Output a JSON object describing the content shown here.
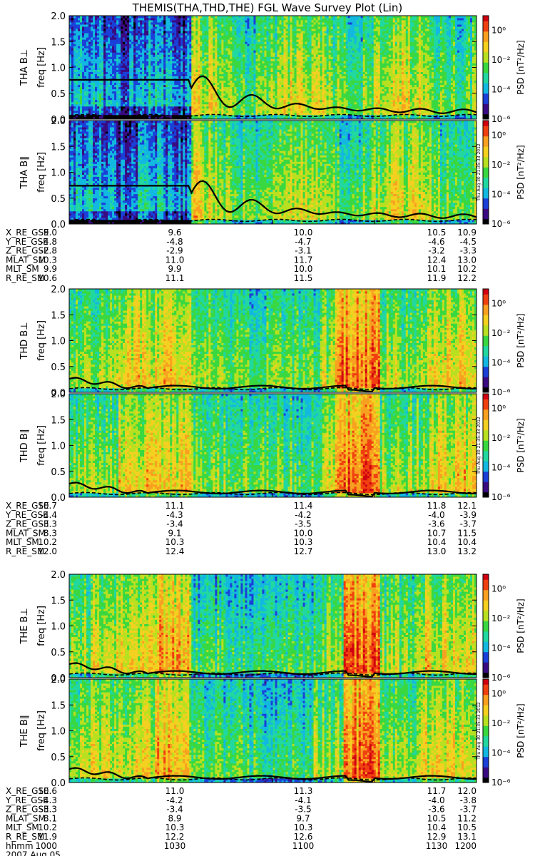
{
  "title": "THEMIS(THA,THD,THE) FGL Wave Survey Plot (Lin)",
  "colors": {
    "colormap": [
      "#000000",
      "#3a0a80",
      "#1a40d8",
      "#12b8e0",
      "#20d8a0",
      "#3ad840",
      "#b8e020",
      "#f4d020",
      "#f8a020",
      "#f04010",
      "#d00010"
    ],
    "trace": "#000000"
  },
  "stamp": "Thu Aug 30 21:35:33 2012",
  "colorbar": {
    "label_prefix": "PSD",
    "label_units": "[nT²/Hz]",
    "ticks": [
      "10⁰",
      "10⁻²",
      "10⁻⁴",
      "10⁻⁶"
    ],
    "tick_exponents": [
      0,
      -2,
      -4,
      -6
    ]
  },
  "chart_data": [
    {
      "type": "heatmap",
      "probe": "THA",
      "panels": [
        {
          "ylabel": "THA B⊥",
          "ylabel2": "freq [Hz]"
        },
        {
          "ylabel": "THA B∥",
          "ylabel2": "freq [Hz]"
        }
      ],
      "ylim": [
        0,
        2.0
      ],
      "yticks": [
        "0.0",
        "0.5",
        "1.0",
        "1.5",
        "2.0"
      ],
      "ytick_values": [
        0,
        0.5,
        1.0,
        1.5,
        2.0
      ],
      "zscale": "log",
      "zlim": [
        1e-06,
        10.0
      ],
      "rows": [
        {
          "label": "X_RE_GSE",
          "values": [
            "9.0",
            "9.6",
            "10.0",
            "10.5",
            "10.9"
          ]
        },
        {
          "label": "Y_RE_GSE",
          "values": [
            "-4.8",
            "-4.8",
            "-4.7",
            "-4.6",
            "-4.5"
          ]
        },
        {
          "label": "Z_RE_GSE",
          "values": [
            "-2.8",
            "-2.9",
            "-3.1",
            "-3.2",
            "-3.3"
          ]
        },
        {
          "label": "MLAT_SM",
          "values": [
            "10.3",
            "11.0",
            "11.7",
            "12.4",
            "13.0"
          ]
        },
        {
          "label": "MLT_SM",
          "values": [
            "9.9",
            "9.9",
            "10.0",
            "10.1",
            "10.2"
          ]
        },
        {
          "label": "R_RE_SM",
          "values": [
            "10.6",
            "11.1",
            "11.5",
            "11.9",
            "12.2"
          ]
        }
      ]
    },
    {
      "type": "heatmap",
      "probe": "THD",
      "panels": [
        {
          "ylabel": "THD B⊥",
          "ylabel2": "freq [Hz]"
        },
        {
          "ylabel": "THD B∥",
          "ylabel2": "freq [Hz]"
        }
      ],
      "ylim": [
        0,
        2.0
      ],
      "yticks": [
        "0.0",
        "0.5",
        "1.0",
        "1.5",
        "2.0"
      ],
      "ytick_values": [
        0,
        0.5,
        1.0,
        1.5,
        2.0
      ],
      "zscale": "log",
      "zlim": [
        1e-06,
        10.0
      ],
      "rows": [
        {
          "label": "X_RE_GSE",
          "values": [
            "10.7",
            "11.1",
            "11.4",
            "11.8",
            "12.1"
          ]
        },
        {
          "label": "Y_RE_GSE",
          "values": [
            "-4.4",
            "-4.3",
            "-4.2",
            "-4.0",
            "-3.9"
          ]
        },
        {
          "label": "Z_RE_GSE",
          "values": [
            "-3.3",
            "-3.4",
            "-3.5",
            "-3.6",
            "-3.7"
          ]
        },
        {
          "label": "MLAT_SM",
          "values": [
            "8.3",
            "9.1",
            "10.0",
            "10.7",
            "11.5"
          ]
        },
        {
          "label": "MLT_SM",
          "values": [
            "10.2",
            "10.3",
            "10.3",
            "10.4",
            "10.4"
          ]
        },
        {
          "label": "R_RE_SM",
          "values": [
            "12.0",
            "12.4",
            "12.7",
            "13.0",
            "13.2"
          ]
        }
      ]
    },
    {
      "type": "heatmap",
      "probe": "THE",
      "panels": [
        {
          "ylabel": "THE B⊥",
          "ylabel2": "freq [Hz]"
        },
        {
          "ylabel": "THE B∥",
          "ylabel2": "freq [Hz]"
        }
      ],
      "ylim": [
        0,
        2.0
      ],
      "yticks": [
        "0.0",
        "0.5",
        "1.0",
        "1.5",
        "2.0"
      ],
      "ytick_values": [
        0,
        0.5,
        1.0,
        1.5,
        2.0
      ],
      "zscale": "log",
      "zlim": [
        1e-06,
        10.0
      ],
      "rows": [
        {
          "label": "X_RE_GSE",
          "values": [
            "10.6",
            "11.0",
            "11.3",
            "11.7",
            "12.0"
          ]
        },
        {
          "label": "Y_RE_GSE",
          "values": [
            "-4.3",
            "-4.2",
            "-4.1",
            "-4.0",
            "-3.8"
          ]
        },
        {
          "label": "Z_RE_GSE",
          "values": [
            "-3.3",
            "-3.4",
            "-3.5",
            "-3.6",
            "-3.7"
          ]
        },
        {
          "label": "MLAT_SM",
          "values": [
            "8.1",
            "8.9",
            "9.7",
            "10.5",
            "11.2"
          ]
        },
        {
          "label": "MLT_SM",
          "values": [
            "10.2",
            "10.3",
            "10.3",
            "10.4",
            "10.5"
          ]
        },
        {
          "label": "R_RE_SM",
          "values": [
            "11.9",
            "12.2",
            "12.6",
            "12.9",
            "13.1"
          ]
        },
        {
          "label": "hhmm",
          "values": [
            "1000",
            "1030",
            "1100",
            "1130",
            "1200"
          ]
        }
      ],
      "date": "2007 Aug 05"
    }
  ]
}
